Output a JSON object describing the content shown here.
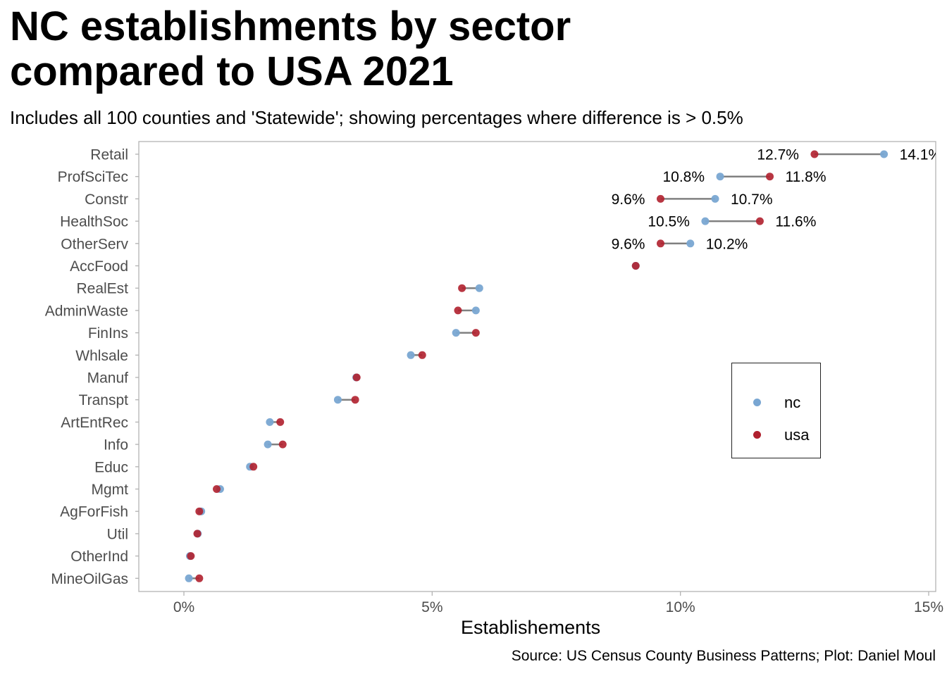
{
  "title": "NC establishments by sector\ncompared to USA 2021",
  "subtitle": "Includes all 100 counties and 'Statewide'; showing percentages where difference is > 0.5%",
  "caption": "Source: US Census County Business Patterns; Plot: Daniel Moul",
  "colors": {
    "nc": "#79a6d2",
    "usa": "#b0202e",
    "segment": "#808080"
  },
  "chart_data": {
    "type": "dumbbell",
    "xlabel": "Establishements",
    "ylabel": "",
    "xlim": [
      -0.9,
      15
    ],
    "xticks": [
      0,
      5,
      10,
      15
    ],
    "xtick_labels": [
      "0%",
      "5%",
      "10%",
      "15%"
    ],
    "grid": false,
    "legend_position": "right-center",
    "series": [
      {
        "name": "nc"
      },
      {
        "name": "usa"
      }
    ],
    "categories": [
      "Retail",
      "ProfSciTec",
      "Constr",
      "HealthSoc",
      "OtherServ",
      "AccFood",
      "RealEst",
      "AdminWaste",
      "FinIns",
      "Whlsale",
      "Manuf",
      "Transpt",
      "ArtEntRec",
      "Info",
      "Educ",
      "Mgmt",
      "AgForFish",
      "Util",
      "OtherInd",
      "MineOilGas"
    ],
    "nc": [
      14.1,
      10.8,
      10.7,
      10.5,
      10.2,
      9.1,
      5.95,
      5.88,
      5.48,
      4.57,
      3.47,
      3.1,
      1.73,
      1.69,
      1.33,
      0.73,
      0.35,
      0.28,
      0.12,
      0.1
    ],
    "usa": [
      12.7,
      11.8,
      9.6,
      11.6,
      9.6,
      9.1,
      5.6,
      5.52,
      5.88,
      4.8,
      3.48,
      3.45,
      1.94,
      1.99,
      1.4,
      0.66,
      0.31,
      0.27,
      0.14,
      0.31
    ],
    "labels": [
      {
        "category": "Retail",
        "nc": "14.1%",
        "usa": "12.7%"
      },
      {
        "category": "ProfSciTec",
        "nc": "10.8%",
        "usa": "11.8%"
      },
      {
        "category": "Constr",
        "nc": "10.7%",
        "usa": "9.6%"
      },
      {
        "category": "HealthSoc",
        "nc": "10.5%",
        "usa": "11.6%"
      },
      {
        "category": "OtherServ",
        "nc": "10.2%",
        "usa": "9.6%"
      }
    ]
  }
}
